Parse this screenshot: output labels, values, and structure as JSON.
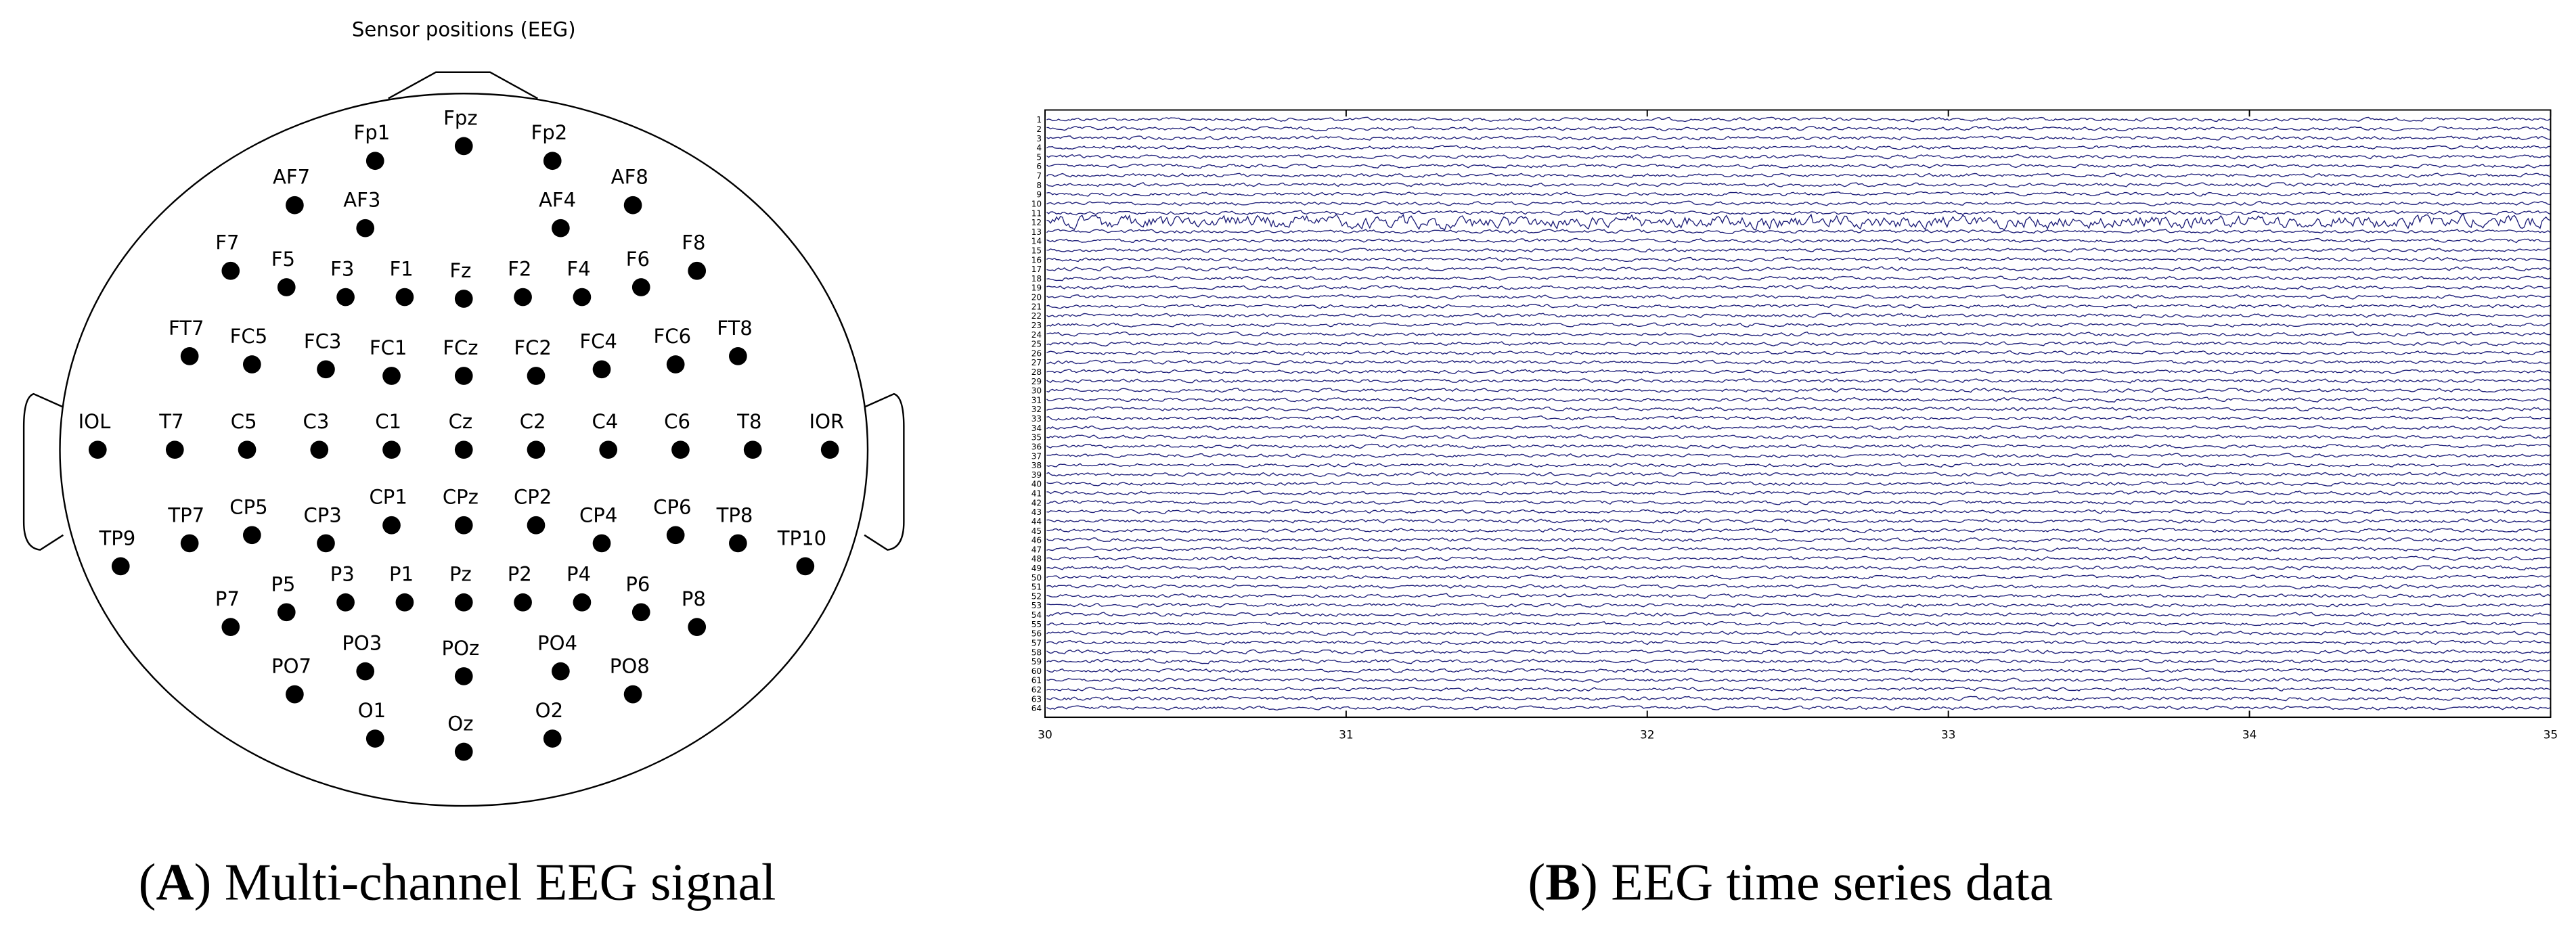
{
  "panel_a": {
    "title": "Sensor positions (EEG)",
    "sensors": [
      "Fp1",
      "Fpz",
      "Fp2",
      "AF7",
      "AF3",
      "AF4",
      "AF8",
      "F7",
      "F5",
      "F3",
      "F1",
      "Fz",
      "F2",
      "F4",
      "F6",
      "F8",
      "FT7",
      "FC5",
      "FC3",
      "FC1",
      "FCz",
      "FC2",
      "FC4",
      "FC6",
      "FT8",
      "IOL",
      "T7",
      "C5",
      "C3",
      "C1",
      "Cz",
      "C2",
      "C4",
      "C6",
      "T8",
      "IOR",
      "TP9",
      "TP7",
      "CP5",
      "CP3",
      "CP1",
      "CPz",
      "CP2",
      "CP4",
      "CP6",
      "TP8",
      "TP10",
      "P7",
      "P5",
      "P3",
      "P1",
      "Pz",
      "P2",
      "P4",
      "P6",
      "P8",
      "PO7",
      "PO3",
      "POz",
      "PO4",
      "PO8",
      "O1",
      "Oz",
      "O2"
    ],
    "caption": [
      "(",
      "A",
      ") Multi-channel EEG signal"
    ]
  },
  "panel_b": {
    "xlim": [
      30,
      35
    ],
    "xticks": [
      30,
      31,
      32,
      33,
      34,
      35
    ],
    "channels": [
      "1",
      "2",
      "3",
      "4",
      "5",
      "6",
      "7",
      "8",
      "9",
      "10",
      "11",
      "12",
      "13",
      "14",
      "15",
      "16",
      "17",
      "18",
      "19",
      "20",
      "21",
      "22",
      "23",
      "24",
      "25",
      "26",
      "27",
      "28",
      "29",
      "30",
      "31",
      "32",
      "33",
      "34",
      "35",
      "36",
      "37",
      "38",
      "39",
      "40",
      "41",
      "42",
      "43",
      "44",
      "45",
      "46",
      "47",
      "48",
      "49",
      "50",
      "51",
      "52",
      "53",
      "54",
      "55",
      "56",
      "57",
      "58",
      "59",
      "60",
      "61",
      "62",
      "63",
      "64"
    ],
    "caption": [
      "(",
      "B",
      ") EEG time series data"
    ]
  }
}
